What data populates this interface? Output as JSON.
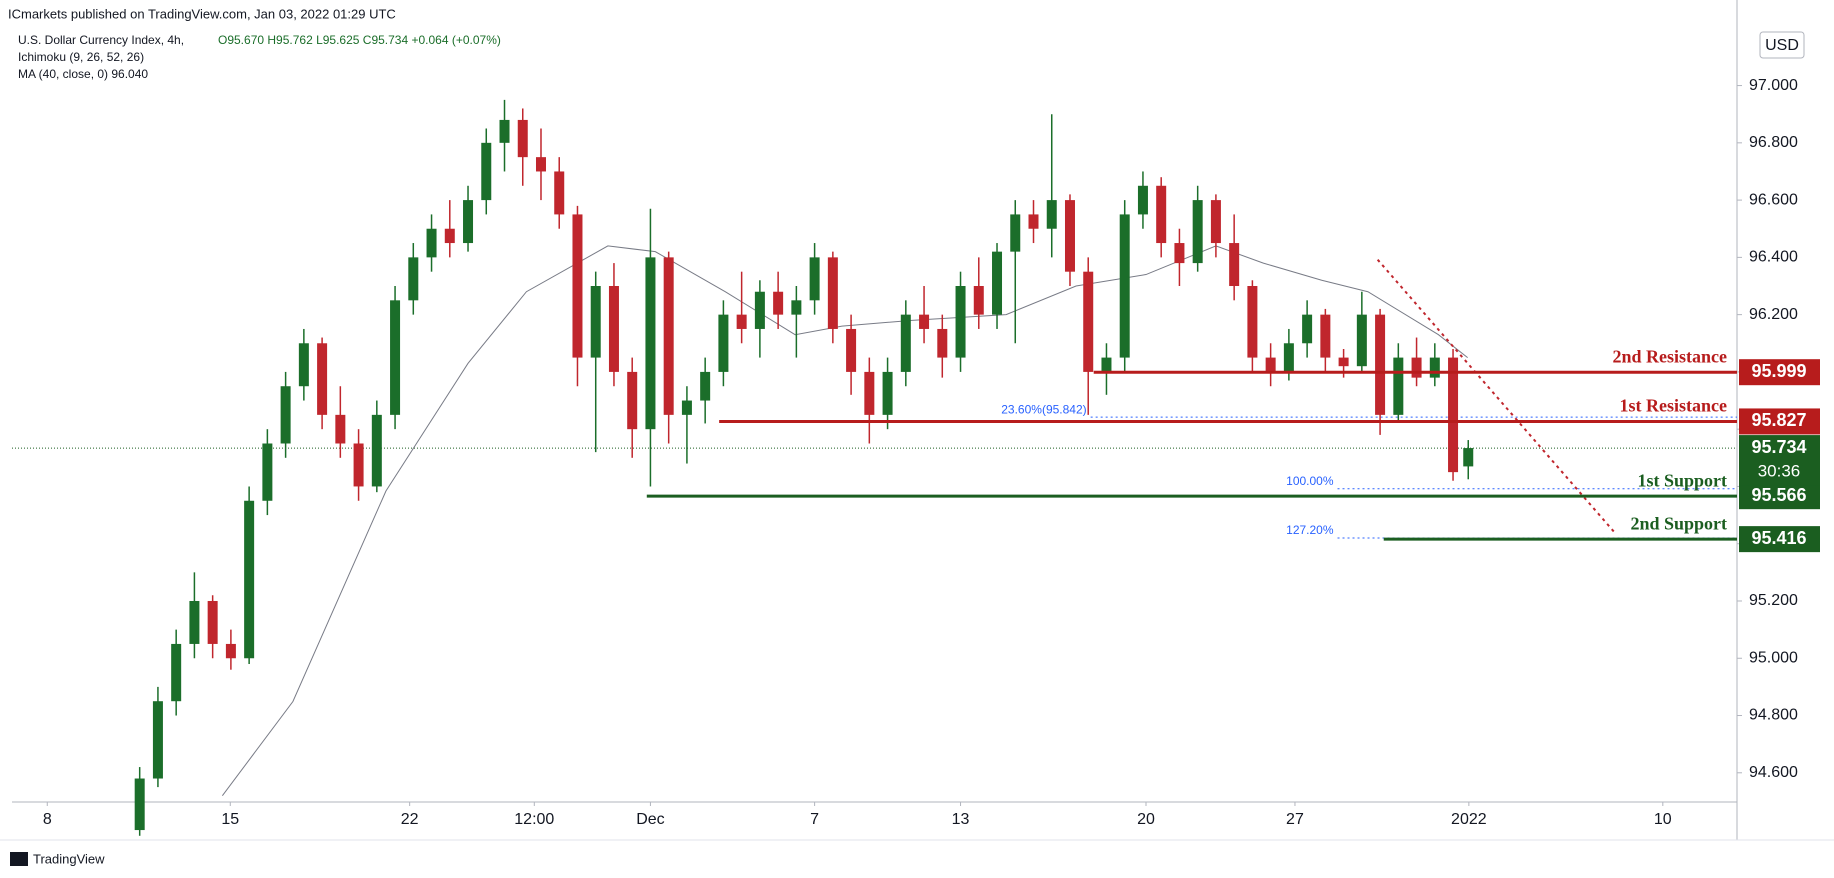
{
  "chart_data": {
    "type": "candlestick",
    "publisher_note": "ICmarkets published on TradingView.com, Jan 03, 2022 01:29 UTC",
    "symbol": "U.S. Dollar Currency Index, 4h,",
    "ohlc_text": "O95.670 H95.762 L95.625 C95.734 +0.064 (+0.07%)",
    "indicators": [
      "Ichimoku (9, 26, 52, 26)",
      "MA (40, close, 0)  96.040"
    ],
    "currency": "USD",
    "countdown": "30:36",
    "brand": "TradingView",
    "up_color": "#1b6e2a",
    "down_color": "#c0262d",
    "xlim": [
      0,
      283.7
    ],
    "ylim": [
      94.498,
      97.208
    ],
    "xticks": [
      {
        "value": 5.8,
        "label": "8"
      },
      {
        "value": 35.9,
        "label": "15"
      },
      {
        "value": 65.4,
        "label": "22"
      },
      {
        "value": 85.9,
        "label": "12:00"
      },
      {
        "value": 105,
        "label": "Dec"
      },
      {
        "value": 132,
        "label": "7"
      },
      {
        "value": 156,
        "label": "13"
      },
      {
        "value": 186.5,
        "label": "20"
      },
      {
        "value": 211,
        "label": "27"
      },
      {
        "value": 239.6,
        "label": "2022"
      },
      {
        "value": 271.5,
        "label": "10"
      }
    ],
    "yticks": [
      {
        "value": 94.6,
        "label": "94.600"
      },
      {
        "value": 94.8,
        "label": "94.800"
      },
      {
        "value": 95.0,
        "label": "95.000"
      },
      {
        "value": 95.2,
        "label": "95.200"
      },
      {
        "value": 95.4,
        "label": "95.400"
      },
      {
        "value": 95.6,
        "label": "95.600"
      },
      {
        "value": 95.8,
        "label": "95.800"
      },
      {
        "value": 96.0,
        "label": "96.000"
      },
      {
        "value": 96.2,
        "label": "96.200"
      },
      {
        "value": 96.4,
        "label": "96.400"
      },
      {
        "value": 96.6,
        "label": "96.600"
      },
      {
        "value": 96.8,
        "label": "96.800"
      },
      {
        "value": 97.0,
        "label": "97.000"
      }
    ],
    "x": [
      21,
      24,
      27,
      30,
      33,
      36,
      39,
      42,
      45,
      48,
      51,
      54,
      57,
      60,
      63,
      66,
      69,
      72,
      75,
      78,
      81,
      84,
      87,
      90,
      93,
      96,
      99,
      102,
      105,
      108,
      111,
      114,
      117,
      120,
      123,
      126,
      129,
      132,
      135,
      138,
      141,
      144,
      147,
      150,
      153,
      156,
      159,
      162,
      165,
      168,
      171,
      174,
      177,
      180,
      183,
      186,
      189,
      192,
      195,
      198,
      201,
      204,
      207,
      210,
      213,
      216,
      219,
      222,
      225,
      228,
      231,
      234,
      237,
      239.5
    ],
    "open": [
      94.4,
      94.58,
      94.85,
      95.05,
      95.2,
      95.05,
      95.0,
      95.55,
      95.75,
      95.95,
      96.1,
      95.85,
      95.75,
      95.6,
      95.85,
      96.25,
      96.4,
      96.5,
      96.45,
      96.6,
      96.8,
      96.88,
      96.75,
      96.7,
      96.55,
      96.05,
      96.3,
      96.0,
      95.8,
      96.4,
      95.85,
      95.9,
      96.0,
      96.2,
      96.15,
      96.28,
      96.2,
      96.25,
      96.4,
      96.15,
      96.0,
      95.85,
      96.0,
      96.2,
      96.15,
      96.05,
      96.3,
      96.2,
      96.42,
      96.55,
      96.5,
      96.6,
      96.35,
      96.0,
      96.05,
      96.55,
      96.65,
      96.45,
      96.38,
      96.6,
      96.45,
      96.3,
      96.05,
      96.0,
      96.1,
      96.2,
      96.05,
      96.02,
      96.2,
      95.85,
      96.05,
      95.98,
      96.05,
      95.67
    ],
    "high": [
      94.62,
      94.9,
      95.1,
      95.3,
      95.22,
      95.1,
      95.6,
      95.8,
      96.0,
      96.15,
      96.12,
      95.95,
      95.8,
      95.9,
      96.3,
      96.45,
      96.55,
      96.6,
      96.65,
      96.85,
      96.95,
      96.92,
      96.85,
      96.75,
      96.58,
      96.35,
      96.38,
      96.05,
      96.57,
      96.42,
      95.95,
      96.05,
      96.25,
      96.35,
      96.32,
      96.35,
      96.3,
      96.45,
      96.42,
      96.2,
      96.05,
      96.05,
      96.25,
      96.3,
      96.2,
      96.35,
      96.4,
      96.45,
      96.6,
      96.6,
      96.9,
      96.62,
      96.4,
      96.1,
      96.6,
      96.7,
      96.68,
      96.5,
      96.65,
      96.62,
      96.55,
      96.32,
      96.1,
      96.15,
      96.25,
      96.22,
      96.08,
      96.28,
      96.22,
      96.1,
      96.12,
      96.1,
      96.08,
      95.762
    ],
    "low": [
      94.38,
      94.55,
      94.8,
      95.0,
      95.0,
      94.96,
      94.98,
      95.5,
      95.7,
      95.9,
      95.8,
      95.7,
      95.55,
      95.58,
      95.8,
      96.2,
      96.35,
      96.4,
      96.42,
      96.55,
      96.7,
      96.65,
      96.6,
      96.5,
      95.95,
      95.72,
      95.95,
      95.7,
      95.6,
      95.75,
      95.68,
      95.82,
      95.95,
      96.1,
      96.05,
      96.15,
      96.05,
      96.2,
      96.1,
      95.92,
      95.75,
      95.8,
      95.95,
      96.1,
      95.98,
      96.0,
      96.15,
      96.15,
      96.1,
      96.45,
      96.4,
      96.3,
      95.85,
      95.92,
      96.0,
      96.5,
      96.4,
      96.3,
      96.35,
      96.4,
      96.25,
      96.0,
      95.95,
      95.97,
      96.05,
      96.0,
      95.98,
      96.0,
      95.78,
      95.83,
      95.95,
      95.95,
      95.62,
      95.625
    ],
    "close": [
      94.58,
      94.85,
      95.05,
      95.2,
      95.05,
      95.0,
      95.55,
      95.75,
      95.95,
      96.1,
      95.85,
      95.75,
      95.6,
      95.85,
      96.25,
      96.4,
      96.5,
      96.45,
      96.6,
      96.8,
      96.88,
      96.75,
      96.7,
      96.55,
      96.05,
      96.3,
      96.0,
      95.8,
      96.4,
      95.85,
      95.9,
      96.0,
      96.2,
      96.15,
      96.28,
      96.2,
      96.25,
      96.4,
      96.15,
      96.0,
      95.85,
      96.0,
      96.2,
      96.15,
      96.05,
      96.3,
      96.2,
      96.42,
      96.55,
      96.5,
      96.6,
      96.35,
      96.0,
      96.05,
      96.55,
      96.65,
      96.45,
      96.38,
      96.6,
      96.45,
      96.3,
      96.05,
      96.0,
      96.1,
      96.2,
      96.05,
      96.02,
      96.2,
      95.85,
      96.05,
      95.98,
      96.05,
      95.65,
      95.734
    ],
    "ma": {
      "color": "#787b86",
      "x": [
        34.6,
        46.2,
        61.5,
        75,
        84.6,
        98,
        105.8,
        117.3,
        128.8,
        136.5,
        148,
        163.5,
        175,
        186.5,
        198,
        205.8,
        215.4,
        223,
        234.6,
        239.4
      ],
      "values": [
        94.52,
        94.849,
        95.584,
        96.03,
        96.28,
        96.44,
        96.42,
        96.28,
        96.13,
        96.16,
        96.18,
        96.2,
        96.3,
        96.34,
        96.44,
        96.38,
        96.32,
        96.28,
        96.13,
        96.05
      ]
    },
    "current_price": {
      "value": 95.734,
      "color": "#1b5e20"
    },
    "levels": [
      {
        "name": "2nd Resistance",
        "value": 95.999,
        "color": "#b71c1c",
        "x_start": 177.9
      },
      {
        "name": "1st Resistance",
        "value": 95.827,
        "color": "#b71c1c",
        "x_start": 116.3
      },
      {
        "name": "1st Support",
        "value": 95.566,
        "color": "#1b5e20",
        "x_start": 104.4
      },
      {
        "name": "2nd Support",
        "value": 95.416,
        "color": "#1b5e20",
        "x_start": 225.6
      }
    ],
    "fib": [
      {
        "label": "23.60%(95.842)",
        "value": 95.842,
        "x_start": 177.4
      },
      {
        "label": "100.00%",
        "value": 95.592,
        "x_start": 218
      },
      {
        "label": "127.20%",
        "value": 95.42,
        "x_start": 218
      }
    ],
    "trendline": {
      "color": "#c0262d",
      "x": [
        224.6,
        263.5
      ],
      "values": [
        96.392,
        95.441
      ]
    }
  }
}
